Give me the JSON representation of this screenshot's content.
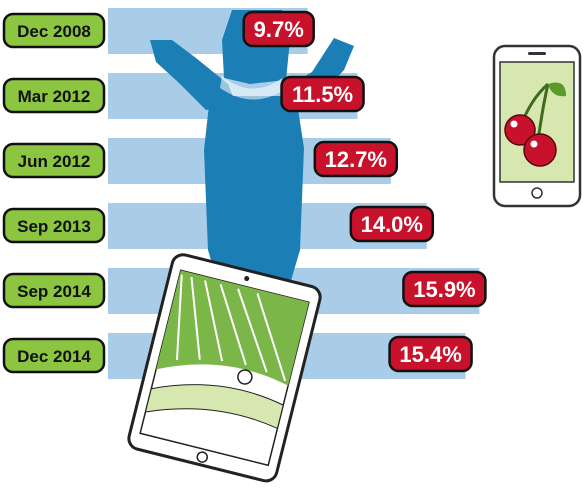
{
  "chart_data": {
    "type": "bar",
    "orientation": "horizontal",
    "categories": [
      "Dec 2008",
      "Mar 2012",
      "Jun 2012",
      "Sep 2013",
      "Sep 2014",
      "Dec 2014"
    ],
    "values": [
      9.7,
      11.5,
      12.7,
      14.0,
      15.9,
      15.4
    ],
    "value_labels": [
      "9.7%",
      "11.5%",
      "12.7%",
      "14.0%",
      "15.9%",
      "15.4%"
    ],
    "unit": "%",
    "xlim": [
      0,
      16.5
    ],
    "grid": false,
    "legend": "none"
  },
  "colors": {
    "bar": "#a9cde8",
    "label_pill": "#8cc540",
    "value_pill": "#c8112a",
    "figure": "#1b7fb5",
    "tablet_green": "#7ab648"
  },
  "illustrations": [
    "person-silhouette",
    "phone-with-cherries",
    "tablet-with-roulette"
  ]
}
